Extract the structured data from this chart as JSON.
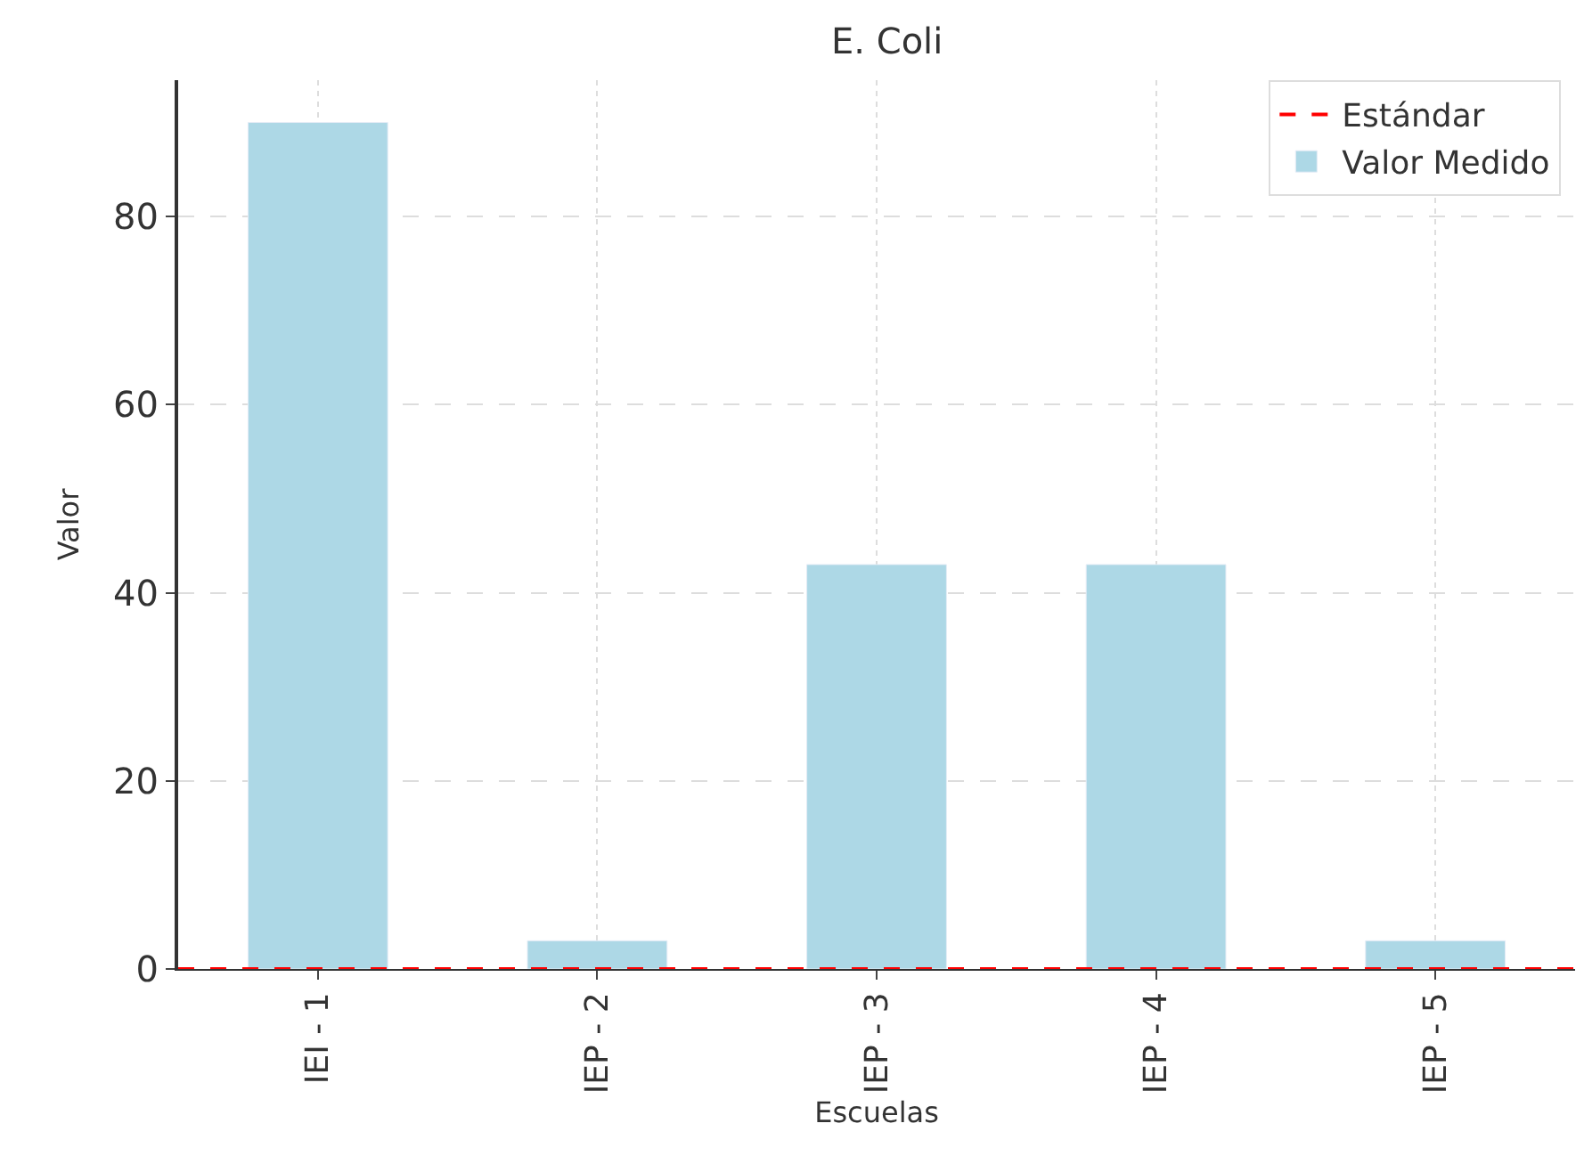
{
  "chart_data": {
    "type": "bar",
    "title": "E. Coli",
    "xlabel": "Escuelas",
    "ylabel": "Valor",
    "categories": [
      "IEI - 1",
      "IEP - 2",
      "IEP - 3",
      "IEP - 4",
      "IEP - 5"
    ],
    "series": [
      {
        "name": "Valor Medido",
        "color": "#add8e6",
        "values": [
          90,
          3,
          43,
          43,
          3
        ]
      }
    ],
    "ref_lines": [
      {
        "axis": "y",
        "value": 0,
        "label": "Estándar",
        "color": "#ff0000",
        "line_style": "dashed"
      }
    ],
    "ylim": [
      0,
      94.5
    ],
    "yticks": [
      0,
      20,
      40,
      60,
      80
    ],
    "grid": true,
    "legend": "top right"
  }
}
